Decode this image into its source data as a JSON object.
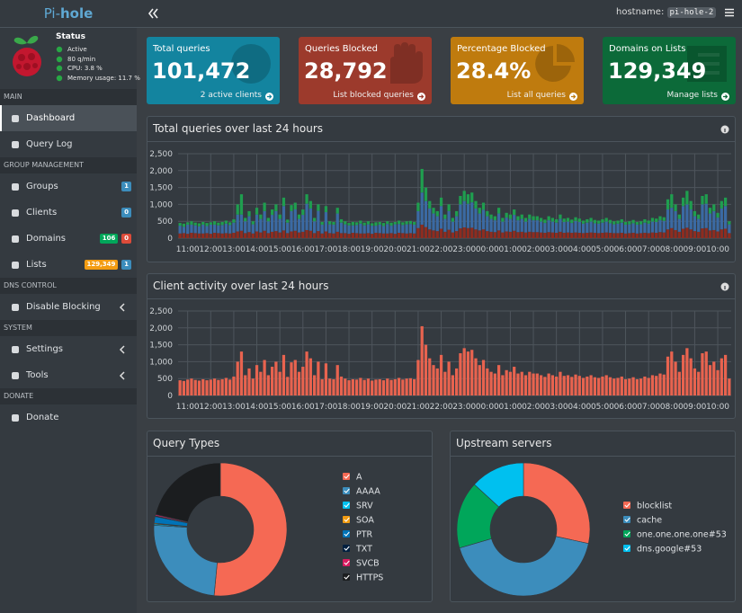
{
  "header": {
    "brand_prefix": "Pi-",
    "brand_suffix": "hole",
    "hostname_label": "hostname:",
    "hostname": "pi-hole-2"
  },
  "status": {
    "title": "Status",
    "items": [
      "Active",
      "80 q/min",
      "CPU: 3.8 %",
      "Memory usage: 11.7 %"
    ]
  },
  "sidebar": {
    "sections": [
      {
        "label": "MAIN",
        "items": [
          {
            "label": "Dashboard",
            "active": true
          },
          {
            "label": "Query Log"
          }
        ]
      },
      {
        "label": "GROUP MANAGEMENT",
        "items": [
          {
            "label": "Groups",
            "badges": [
              {
                "text": "1",
                "color": "#3c8dbc"
              }
            ]
          },
          {
            "label": "Clients",
            "badges": [
              {
                "text": "0",
                "color": "#3c8dbc"
              }
            ]
          },
          {
            "label": "Domains",
            "badges": [
              {
                "text": "106",
                "color": "#00a65a"
              },
              {
                "text": "0",
                "color": "#dd4b39"
              }
            ]
          },
          {
            "label": "Lists",
            "badges": [
              {
                "text": "129,349",
                "color": "#f39c12"
              },
              {
                "text": "1",
                "color": "#3c8dbc"
              }
            ]
          }
        ]
      },
      {
        "label": "DNS CONTROL",
        "items": [
          {
            "label": "Disable Blocking",
            "submenu": true
          }
        ]
      },
      {
        "label": "SYSTEM",
        "items": [
          {
            "label": "Settings",
            "submenu": true
          },
          {
            "label": "Tools",
            "submenu": true
          }
        ]
      },
      {
        "label": "DONATE",
        "items": [
          {
            "label": "Donate"
          }
        ]
      }
    ]
  },
  "stats": [
    {
      "title": "Total queries",
      "value": "101,472",
      "link": "2 active clients",
      "color": "#13849f"
    },
    {
      "title": "Queries Blocked",
      "value": "28,792",
      "link": "List blocked queries",
      "color": "#9c3a2c"
    },
    {
      "title": "Percentage Blocked",
      "value": "28.4%",
      "link": "List all queries",
      "color": "#bf7b0e"
    },
    {
      "title": "Domains on Lists",
      "value": "129,349",
      "link": "Manage lists",
      "color": "#0c6a39"
    }
  ],
  "chart_data": [
    {
      "type": "bar",
      "stacked": true,
      "title": "Total queries over last 24 hours",
      "grid": true,
      "categories": [
        null,
        null,
        "11:00",
        null,
        null,
        null,
        null,
        null,
        "12:00",
        null,
        null,
        null,
        null,
        null,
        "13:00",
        null,
        null,
        null,
        null,
        null,
        "14:00",
        null,
        null,
        null,
        null,
        null,
        "15:00",
        null,
        null,
        null,
        null,
        null,
        "16:00",
        null,
        null,
        null,
        null,
        null,
        "17:00",
        null,
        null,
        null,
        null,
        null,
        "18:00",
        null,
        null,
        null,
        null,
        null,
        "19:00",
        null,
        null,
        null,
        null,
        null,
        "20:00",
        null,
        null,
        null,
        null,
        null,
        "21:00",
        null,
        null,
        null,
        null,
        null,
        "22:00",
        null,
        null,
        null,
        null,
        null,
        "23:00",
        null,
        null,
        null,
        null,
        null,
        "00:00",
        null,
        null,
        null,
        null,
        null,
        "01:00",
        null,
        null,
        null,
        null,
        null,
        "02:00",
        null,
        null,
        null,
        null,
        null,
        "03:00",
        null,
        null,
        null,
        null,
        null,
        "04:00",
        null,
        null,
        null,
        null,
        null,
        "05:00",
        null,
        null,
        null,
        null,
        null,
        "06:00",
        null,
        null,
        null,
        null,
        null,
        "07:00",
        null,
        null,
        null,
        null,
        null,
        "08:00",
        null,
        null,
        null,
        null,
        null,
        "09:00",
        null,
        null,
        null,
        null,
        null,
        "10:00",
        null,
        null,
        null
      ],
      "ylim": [
        0,
        2500
      ],
      "yticks": [
        0,
        500,
        {
          "value": 1000,
          "label": "1,000"
        },
        {
          "value": 1500,
          "label": "1,500"
        },
        {
          "value": 2000,
          "label": "2,000"
        },
        {
          "value": 2500,
          "label": "2,500"
        }
      ],
      "series": [
        {
          "color": "#8e2c20",
          "values": [
            140,
            150,
            130,
            160,
            150,
            140,
            140,
            150,
            130,
            160,
            150,
            140,
            150,
            140,
            160,
            200,
            220,
            150,
            180,
            140,
            200,
            170,
            220,
            150,
            190,
            210,
            170,
            230,
            150,
            200,
            220,
            170,
            190,
            240,
            220,
            150,
            210,
            140,
            200,
            150,
            140,
            190,
            150,
            150,
            130,
            160,
            150,
            140,
            140,
            150,
            130,
            160,
            150,
            140,
            140,
            150,
            130,
            160,
            150,
            140,
            150,
            140,
            300,
            400,
            330,
            260,
            230,
            210,
            280,
            190,
            250,
            170,
            210,
            290,
            320,
            300,
            310,
            260,
            230,
            260,
            210,
            190,
            180,
            230,
            170,
            200,
            190,
            220,
            180,
            190,
            170,
            190,
            180,
            180,
            170,
            160,
            180,
            170,
            160,
            190,
            160,
            170,
            160,
            170,
            160,
            150,
            160,
            170,
            160,
            150,
            160,
            170,
            160,
            150,
            150,
            160,
            140,
            150,
            160,
            140,
            150,
            160,
            150,
            170,
            160,
            180,
            170,
            260,
            300,
            240,
            190,
            280,
            310,
            260,
            210,
            190,
            290,
            300,
            230,
            240,
            200,
            260,
            280,
            150
          ]
        },
        {
          "color": "#3b6aa3",
          "values": [
            230,
            190,
            270,
            240,
            230,
            210,
            260,
            210,
            270,
            240,
            230,
            250,
            280,
            250,
            300,
            500,
            480,
            350,
            470,
            270,
            500,
            400,
            580,
            350,
            500,
            590,
            400,
            720,
            310,
            600,
            630,
            400,
            500,
            780,
            660,
            350,
            600,
            260,
            570,
            260,
            260,
            540,
            310,
            260,
            250,
            220,
            240,
            290,
            240,
            260,
            240,
            210,
            250,
            220,
            280,
            220,
            280,
            260,
            240,
            270,
            270,
            260,
            500,
            950,
            770,
            620,
            500,
            440,
            670,
            380,
            550,
            320,
            440,
            710,
            780,
            720,
            750,
            620,
            500,
            580,
            440,
            380,
            350,
            500,
            320,
            410,
            380,
            470,
            350,
            380,
            320,
            380,
            350,
            350,
            320,
            290,
            350,
            320,
            300,
            380,
            320,
            320,
            290,
            340,
            320,
            280,
            300,
            320,
            280,
            280,
            300,
            320,
            280,
            260,
            280,
            300,
            260,
            260,
            280,
            260,
            260,
            300,
            280,
            320,
            320,
            350,
            340,
            590,
            600,
            560,
            380,
            670,
            690,
            590,
            440,
            380,
            710,
            720,
            500,
            560,
            410,
            620,
            670,
            260
          ]
        },
        {
          "color": "#1f9e4f",
          "values": [
            80,
            90,
            70,
            100,
            80,
            90,
            80,
            90,
            70,
            100,
            80,
            90,
            90,
            80,
            100,
            300,
            600,
            100,
            150,
            90,
            200,
            130,
            250,
            100,
            160,
            200,
            130,
            250,
            90,
            180,
            200,
            130,
            160,
            280,
            220,
            100,
            190,
            80,
            180,
            90,
            80,
            170,
            100,
            90,
            70,
            100,
            80,
            90,
            80,
            90,
            70,
            100,
            80,
            90,
            80,
            90,
            70,
            100,
            80,
            90,
            90,
            80,
            250,
            700,
            400,
            220,
            170,
            150,
            250,
            130,
            200,
            110,
            150,
            250,
            300,
            280,
            290,
            220,
            170,
            210,
            150,
            130,
            120,
            170,
            110,
            140,
            130,
            160,
            120,
            130,
            110,
            130,
            120,
            120,
            110,
            100,
            120,
            110,
            100,
            130,
            100,
            110,
            100,
            110,
            100,
            90,
            100,
            110,
            100,
            90,
            100,
            110,
            100,
            90,
            90,
            100,
            80,
            90,
            100,
            80,
            90,
            100,
            90,
            110,
            100,
            120,
            110,
            300,
            400,
            200,
            130,
            250,
            400,
            250,
            150,
            130,
            250,
            280,
            170,
            200,
            140,
            220,
            250,
            90
          ]
        }
      ]
    },
    {
      "type": "bar",
      "title": "Client activity over last 24 hours",
      "grid": true,
      "categories": [
        null,
        null,
        "11:00",
        null,
        null,
        null,
        null,
        null,
        "12:00",
        null,
        null,
        null,
        null,
        null,
        "13:00",
        null,
        null,
        null,
        null,
        null,
        "14:00",
        null,
        null,
        null,
        null,
        null,
        "15:00",
        null,
        null,
        null,
        null,
        null,
        "16:00",
        null,
        null,
        null,
        null,
        null,
        "17:00",
        null,
        null,
        null,
        null,
        null,
        "18:00",
        null,
        null,
        null,
        null,
        null,
        "19:00",
        null,
        null,
        null,
        null,
        null,
        "20:00",
        null,
        null,
        null,
        null,
        null,
        "21:00",
        null,
        null,
        null,
        null,
        null,
        "22:00",
        null,
        null,
        null,
        null,
        null,
        "23:00",
        null,
        null,
        null,
        null,
        null,
        "00:00",
        null,
        null,
        null,
        null,
        null,
        "01:00",
        null,
        null,
        null,
        null,
        null,
        "02:00",
        null,
        null,
        null,
        null,
        null,
        "03:00",
        null,
        null,
        null,
        null,
        null,
        "04:00",
        null,
        null,
        null,
        null,
        null,
        "05:00",
        null,
        null,
        null,
        null,
        null,
        "06:00",
        null,
        null,
        null,
        null,
        null,
        "07:00",
        null,
        null,
        null,
        null,
        null,
        "08:00",
        null,
        null,
        null,
        null,
        null,
        "09:00",
        null,
        null,
        null,
        null,
        null,
        "10:00",
        null,
        null,
        null
      ],
      "ylim": [
        0,
        2500
      ],
      "yticks": [
        0,
        500,
        {
          "value": 1000,
          "label": "1,000"
        },
        {
          "value": 1500,
          "label": "1,500"
        },
        {
          "value": 2000,
          "label": "2,000"
        },
        {
          "value": 2500,
          "label": "2,500"
        }
      ],
      "series": [
        {
          "color": "#e8634f",
          "values": [
            450,
            430,
            470,
            500,
            460,
            440,
            480,
            450,
            470,
            500,
            460,
            480,
            520,
            470,
            560,
            1000,
            1300,
            600,
            800,
            500,
            900,
            700,
            1050,
            600,
            850,
            1000,
            700,
            1200,
            550,
            980,
            1050,
            700,
            850,
            1300,
            1100,
            600,
            1000,
            480,
            950,
            500,
            480,
            900,
            560,
            500,
            450,
            480,
            470,
            520,
            460,
            500,
            440,
            470,
            480,
            450,
            500,
            460,
            480,
            520,
            470,
            500,
            510,
            480,
            1050,
            2050,
            1500,
            1100,
            900,
            800,
            1200,
            700,
            1000,
            600,
            800,
            1250,
            1400,
            1300,
            1350,
            1100,
            900,
            1050,
            800,
            700,
            650,
            900,
            600,
            750,
            700,
            850,
            650,
            700,
            600,
            700,
            650,
            650,
            600,
            550,
            650,
            600,
            560,
            700,
            580,
            600,
            550,
            620,
            580,
            520,
            560,
            600,
            540,
            520,
            560,
            600,
            540,
            500,
            520,
            560,
            480,
            500,
            540,
            480,
            500,
            560,
            520,
            600,
            580,
            650,
            620,
            1150,
            1300,
            1000,
            700,
            1200,
            1400,
            1100,
            800,
            700,
            1250,
            1300,
            900,
            1000,
            750,
            1100,
            1200,
            500
          ]
        }
      ]
    },
    {
      "type": "doughnut",
      "title": "Query Types",
      "categories": [
        "A",
        "AAAA",
        "SRV",
        "SOA",
        "PTR",
        "TXT",
        "SVCB",
        "HTTPS"
      ],
      "values": [
        51.5,
        24.5,
        0.3,
        0.2,
        1.6,
        0.2,
        0.3,
        21.4
      ],
      "colors": [
        "#f56954",
        "#3c8dbc",
        "#00c0ef",
        "#f39c12",
        "#0073b7",
        "#001f3f",
        "#d81b60",
        "#1b1d1f"
      ]
    },
    {
      "type": "doughnut",
      "title": "Upstream servers",
      "categories": [
        "blocklist",
        "cache",
        "one.one.one.one#53",
        "dns.google#53"
      ],
      "values": [
        28.4,
        42.1,
        16.3,
        13.2
      ],
      "colors": [
        "#f56954",
        "#3c8dbc",
        "#00a65a",
        "#00c0ef"
      ]
    }
  ]
}
